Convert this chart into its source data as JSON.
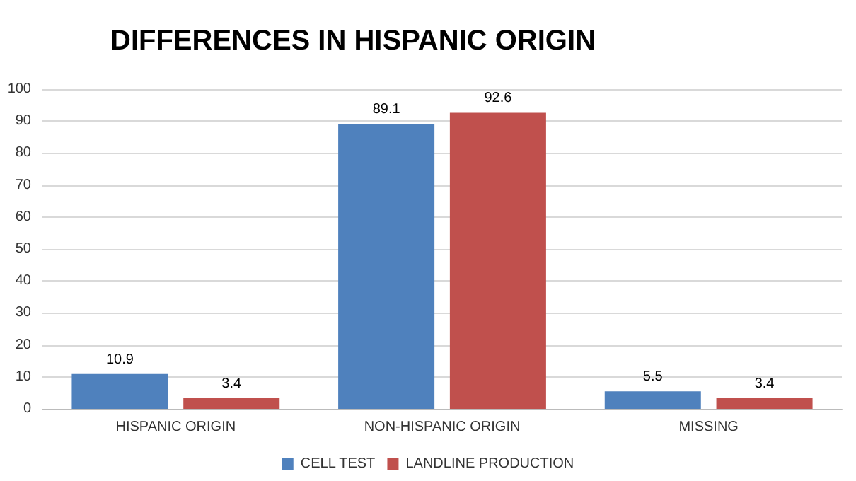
{
  "chart_data": {
    "type": "bar",
    "title": "DIFFERENCES IN HISPANIC ORIGIN",
    "categories": [
      "HISPANIC ORIGIN",
      "NON-HISPANIC ORIGIN",
      "MISSING"
    ],
    "series": [
      {
        "name": "CELL TEST",
        "color": "#4f81bd",
        "values": [
          10.9,
          89.1,
          5.5
        ]
      },
      {
        "name": "LANDLINE PRODUCTION",
        "color": "#c0504d",
        "values": [
          3.4,
          92.6,
          3.4
        ]
      }
    ],
    "ylim": [
      0,
      100
    ],
    "yticks": [
      0,
      10,
      20,
      30,
      40,
      50,
      60,
      70,
      80,
      90,
      100
    ],
    "grid": "y",
    "legend": "bottom",
    "data_labels": true
  }
}
